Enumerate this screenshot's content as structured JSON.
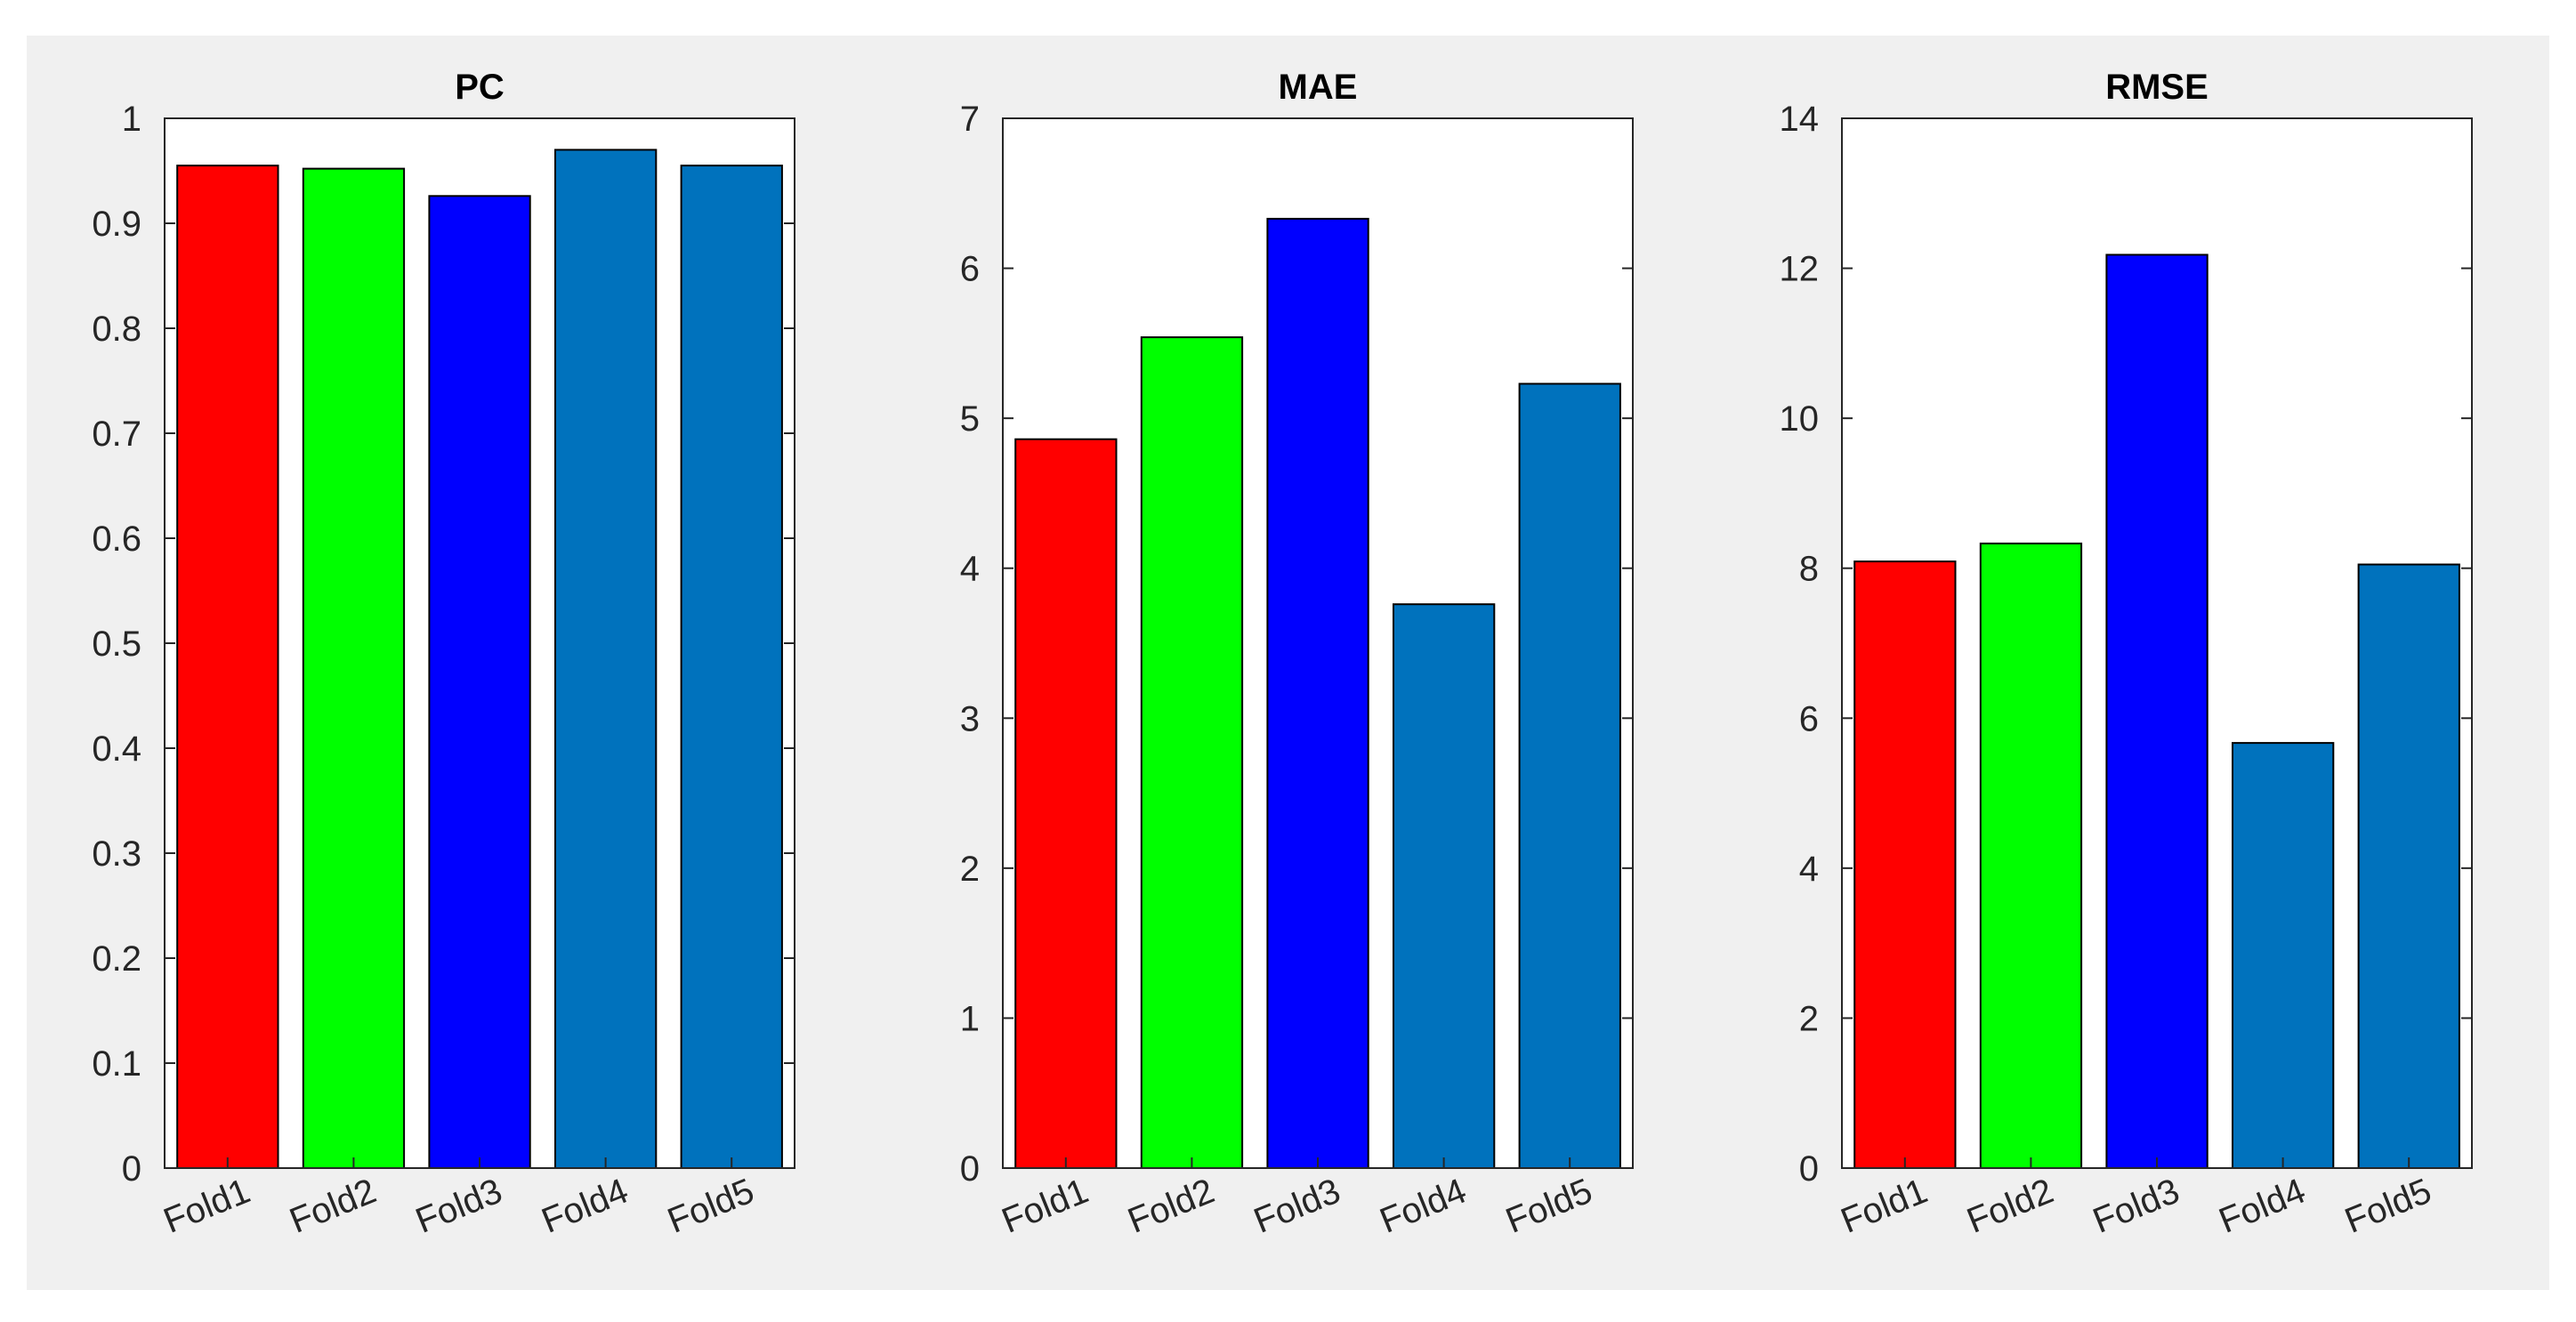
{
  "colors": {
    "background": "#f0f0f0",
    "axes_bg": "#ffffff",
    "bar_edge": "#000000",
    "fold1": "#ff0000",
    "fold2": "#00ff00",
    "fold3": "#0000ff",
    "fold4": "#0072bd",
    "fold5": "#0072bd"
  },
  "chart_data": [
    {
      "type": "bar",
      "title": "PC",
      "categories": [
        "Fold1",
        "Fold2",
        "Fold3",
        "Fold4",
        "Fold5"
      ],
      "values": [
        0.955,
        0.952,
        0.926,
        0.97,
        0.955
      ],
      "ylim": [
        0,
        1
      ],
      "yticks": [
        0,
        0.1,
        0.2,
        0.3,
        0.4,
        0.5,
        0.6,
        0.7,
        0.8,
        0.9,
        1
      ],
      "ytick_labels": [
        "0",
        "0.1",
        "0.2",
        "0.3",
        "0.4",
        "0.5",
        "0.6",
        "0.7",
        "0.8",
        "0.9",
        "1"
      ],
      "bar_colors": [
        "#ff0000",
        "#00ff00",
        "#0000ff",
        "#0072bd",
        "#0072bd"
      ],
      "grid": false,
      "legend": "none"
    },
    {
      "type": "bar",
      "title": "MAE",
      "categories": [
        "Fold1",
        "Fold2",
        "Fold3",
        "Fold4",
        "Fold5"
      ],
      "values": [
        4.86,
        5.54,
        6.33,
        3.76,
        5.23
      ],
      "ylim": [
        0,
        7
      ],
      "yticks": [
        0,
        1,
        2,
        3,
        4,
        5,
        6,
        7
      ],
      "ytick_labels": [
        "0",
        "1",
        "2",
        "3",
        "4",
        "5",
        "6",
        "7"
      ],
      "bar_colors": [
        "#ff0000",
        "#00ff00",
        "#0000ff",
        "#0072bd",
        "#0072bd"
      ],
      "grid": false,
      "legend": "none"
    },
    {
      "type": "bar",
      "title": "RMSE",
      "categories": [
        "Fold1",
        "Fold2",
        "Fold3",
        "Fold4",
        "Fold5"
      ],
      "values": [
        8.09,
        8.33,
        12.18,
        5.67,
        8.05
      ],
      "ylim": [
        0,
        14
      ],
      "yticks": [
        0,
        2,
        4,
        6,
        8,
        10,
        12,
        14
      ],
      "ytick_labels": [
        "0",
        "2",
        "4",
        "6",
        "8",
        "10",
        "12",
        "14"
      ],
      "bar_colors": [
        "#ff0000",
        "#00ff00",
        "#0000ff",
        "#0072bd",
        "#0072bd"
      ],
      "grid": false,
      "legend": "none"
    }
  ]
}
